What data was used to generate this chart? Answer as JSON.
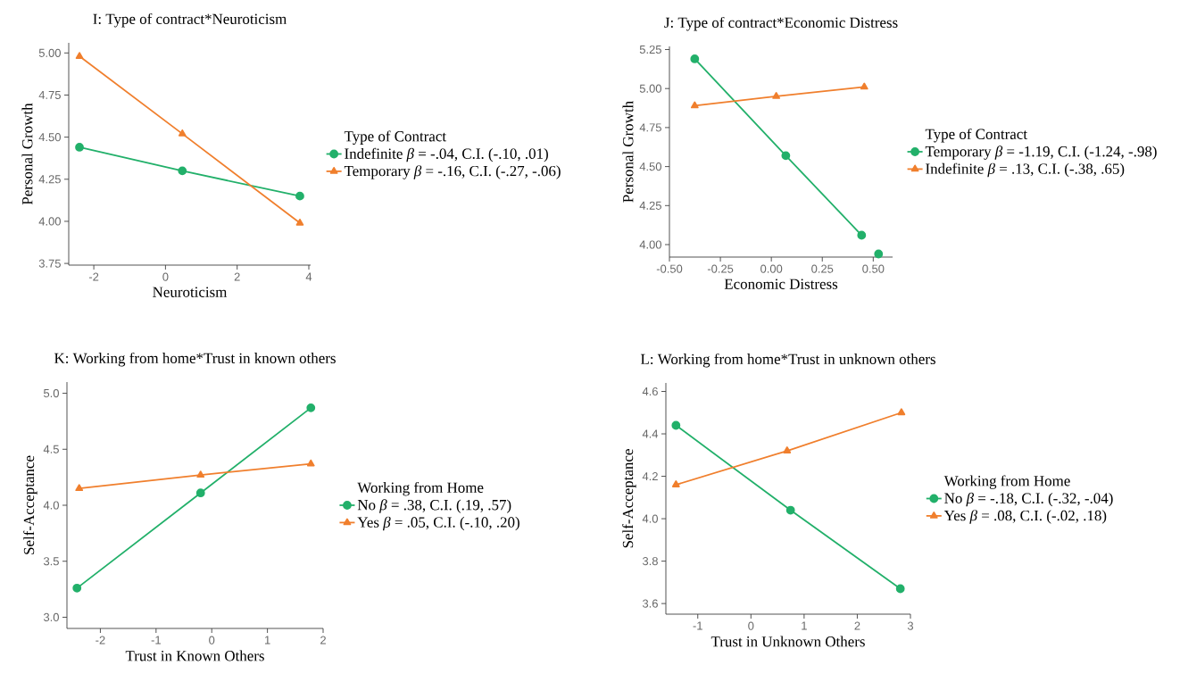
{
  "chart_data": [
    {
      "type": "line",
      "title": "I: Type of contract*Neuroticism",
      "xlabel": "Neuroticism",
      "ylabel": "Personal Growth",
      "legend_title": "Type of Contract",
      "legend": "right",
      "xlim": [
        -2.7,
        4.05
      ],
      "ylim": [
        3.74,
        5.06
      ],
      "xticks": [
        -2,
        0,
        2,
        4
      ],
      "yticks": [
        {
          "value": 3.75,
          "label": "3.75"
        },
        {
          "value": 4,
          "label": "4.00"
        },
        {
          "value": 4.25,
          "label": "4.25"
        },
        {
          "value": 4.5,
          "label": "4.50"
        },
        {
          "value": 4.75,
          "label": "4.75"
        },
        {
          "value": 5,
          "label": "5.00"
        }
      ],
      "series": [
        {
          "name": "Indefinite *β* = -.04, C.I. (-.10, .01)",
          "color": "#22b06a",
          "marker": "circle",
          "line_style": "solid",
          "x": [
            -2.4,
            0.47,
            3.75
          ],
          "values": [
            4.44,
            4.3,
            4.15
          ]
        },
        {
          "name": "Temporary *β* = -.16, C.I. (-.27, -.06)",
          "color": "#f07f2d",
          "marker": "triangle",
          "line_style": "solid",
          "x": [
            -2.4,
            0.47,
            3.75
          ],
          "values": [
            4.98,
            4.52,
            3.99
          ]
        }
      ]
    },
    {
      "type": "line",
      "title": "J: Type of contract*Economic Distress",
      "xlabel": "Economic Distress",
      "ylabel": "Personal Growth",
      "legend_title": "Type of Contract",
      "legend": "right",
      "xlim": [
        -0.5,
        0.595
      ],
      "ylim": [
        3.92,
        5.27
      ],
      "xticks": [
        {
          "value": -0.5,
          "label": "-0.50"
        },
        {
          "value": -0.25,
          "label": "-0.25"
        },
        {
          "value": 0,
          "label": "0.00"
        },
        {
          "value": 0.25,
          "label": "0.25"
        },
        {
          "value": 0.5,
          "label": "0.50"
        }
      ],
      "yticks": [
        {
          "value": 4,
          "label": "4.00"
        },
        {
          "value": 4.25,
          "label": "4.25"
        },
        {
          "value": 4.5,
          "label": "4.50"
        },
        {
          "value": 4.75,
          "label": "4.75"
        },
        {
          "value": 5,
          "label": "5.00"
        },
        {
          "value": 5.25,
          "label": "5.25"
        }
      ],
      "series": [
        {
          "name": "Temporary *β* = -1.19, C.I. (-1.24, -.98)",
          "color": "#22b06a",
          "marker": "circle",
          "line_style": "solid",
          "x": [
            -0.376,
            0.071,
            0.443
          ],
          "values": [
            5.19,
            4.57,
            4.06
          ]
        },
        {
          "name": "Indefinite *β* = .13, C.I. (-.38, .65)",
          "color": "#f07f2d",
          "marker": "triangle",
          "line_style": "solid",
          "x": [
            -0.376,
            0.024,
            0.456
          ],
          "values": [
            4.89,
            4.95,
            5.01
          ]
        },
        {
          "type": "scatter",
          "color": "#22b06a",
          "marker": "circle",
          "x": [
            0.526
          ],
          "values": [
            3.94
          ]
        }
      ]
    },
    {
      "type": "line",
      "title": "K: Working from home*Trust in known others",
      "xlabel": "Trust in Known Others",
      "ylabel": "Self-Acceptance",
      "legend_title": "Working from Home",
      "legend": "right",
      "xlim": [
        -2.6,
        2.0
      ],
      "ylim": [
        2.9,
        5.1
      ],
      "xticks": [
        -2,
        -1,
        0,
        1,
        2
      ],
      "yticks": [
        {
          "value": 3,
          "label": "3.0"
        },
        3.5,
        {
          "value": 4,
          "label": "4.0"
        },
        4.5,
        {
          "value": 5,
          "label": "5.0"
        }
      ],
      "series": [
        {
          "name": "No *β* =  .38, C.I. (.19, .57)",
          "color": "#22b06a",
          "marker": "circle",
          "line_style": "solid",
          "x": [
            -2.42,
            -0.2,
            1.78
          ],
          "values": [
            3.26,
            4.11,
            4.87
          ]
        },
        {
          "name": "Yes *β* = .05, C.I. (-.10, .20)",
          "color": "#f07f2d",
          "marker": "triangle",
          "line_style": "solid",
          "x": [
            -2.38,
            -0.2,
            1.78
          ],
          "values": [
            4.15,
            4.27,
            4.37
          ]
        }
      ]
    },
    {
      "type": "line",
      "title": "L: Working from home*Trust in unknown others",
      "xlabel": "Trust in Unknown Others",
      "ylabel": "Self-Acceptance",
      "legend_title": "Working from Home",
      "legend": "right",
      "xlim": [
        -1.6,
        3.0
      ],
      "ylim": [
        3.55,
        4.64
      ],
      "xticks": [
        -1,
        0,
        1,
        2,
        3
      ],
      "yticks": [
        3.6,
        3.8,
        {
          "value": 4,
          "label": "4.0"
        },
        4.2,
        4.4,
        4.6
      ],
      "series": [
        {
          "name": "No *β* = -.18, C.I. (-.32, -.04)",
          "color": "#22b06a",
          "marker": "circle",
          "line_style": "solid",
          "x": [
            -1.41,
            0.745,
            2.81
          ],
          "values": [
            4.44,
            4.04,
            3.67
          ]
        },
        {
          "name": "Yes *β* = .08, C.I. (-.02, .18)",
          "color": "#f07f2d",
          "marker": "triangle",
          "line_style": "solid",
          "x": [
            -1.41,
            0.68,
            2.83
          ],
          "values": [
            4.16,
            4.32,
            4.5
          ]
        }
      ]
    }
  ]
}
